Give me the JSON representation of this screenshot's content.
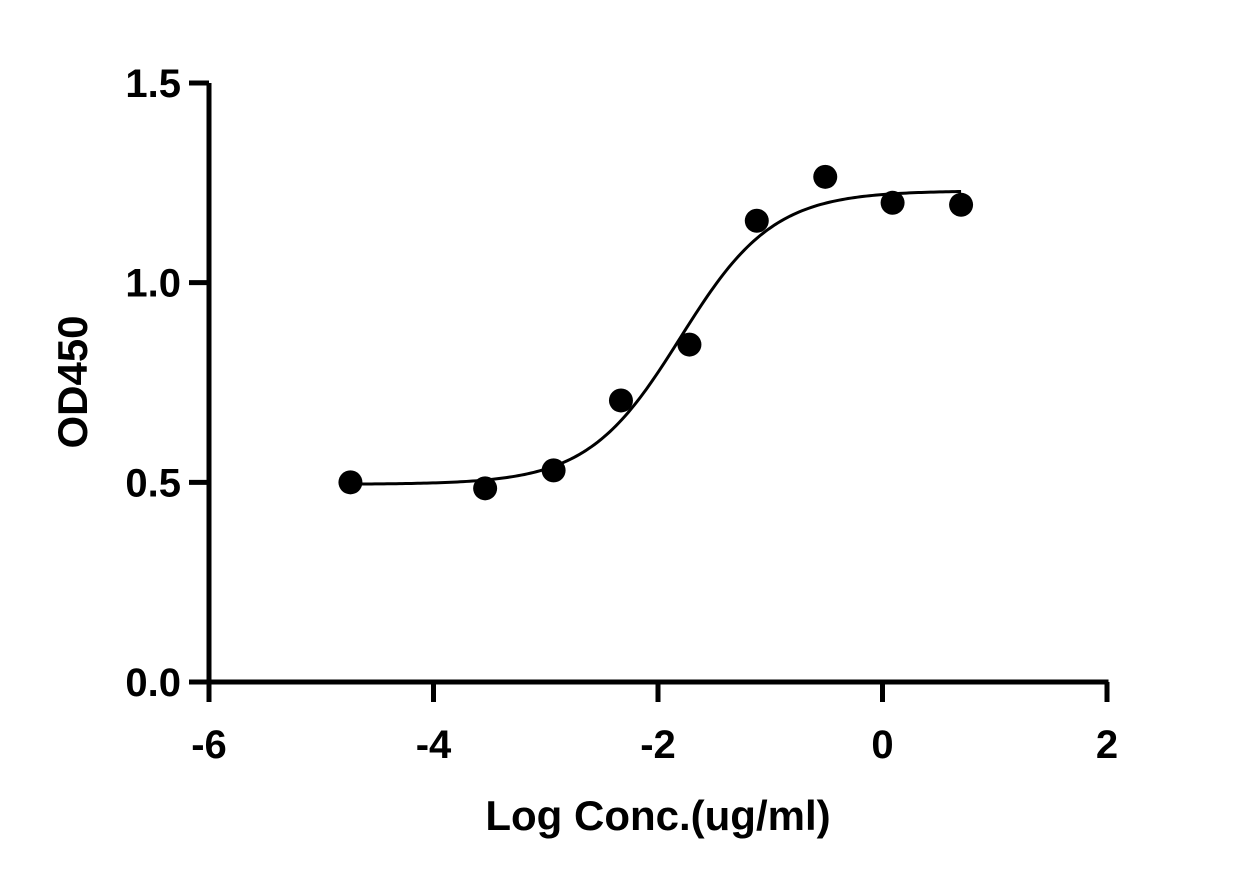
{
  "chart_data": {
    "type": "scatter",
    "title": "",
    "xlabel": "Log Conc.(ug/ml)",
    "ylabel": "OD450",
    "xlim": [
      -6,
      2
    ],
    "ylim": [
      0,
      1.5
    ],
    "x_ticks": [
      -6,
      -4,
      -2,
      0,
      2
    ],
    "x_tick_labels": [
      "-6",
      "-4",
      "-2",
      "0",
      "2"
    ],
    "y_ticks": [
      0,
      0.5,
      1.0,
      1.5
    ],
    "y_tick_labels": [
      "0.0",
      "0.5",
      "1.0",
      "1.5"
    ],
    "grid": false,
    "legend": "none",
    "series": [
      {
        "x": [
          -4.74,
          -3.54,
          -2.93,
          -2.33,
          -1.72,
          -1.12,
          -0.51,
          0.09,
          0.7
        ],
        "y": [
          0.5,
          0.485,
          0.53,
          0.705,
          0.845,
          1.155,
          1.265,
          1.2,
          1.195
        ]
      }
    ],
    "fit_curve": {
      "model": "four-parameter logistic",
      "bottom": 0.495,
      "top": 1.23,
      "log_ec50": -1.8,
      "hill_slope": 1.05,
      "x_range": [
        -4.74,
        0.7
      ]
    },
    "colors": {
      "points": "#000000",
      "curve": "#000000",
      "axes": "#000000"
    }
  }
}
